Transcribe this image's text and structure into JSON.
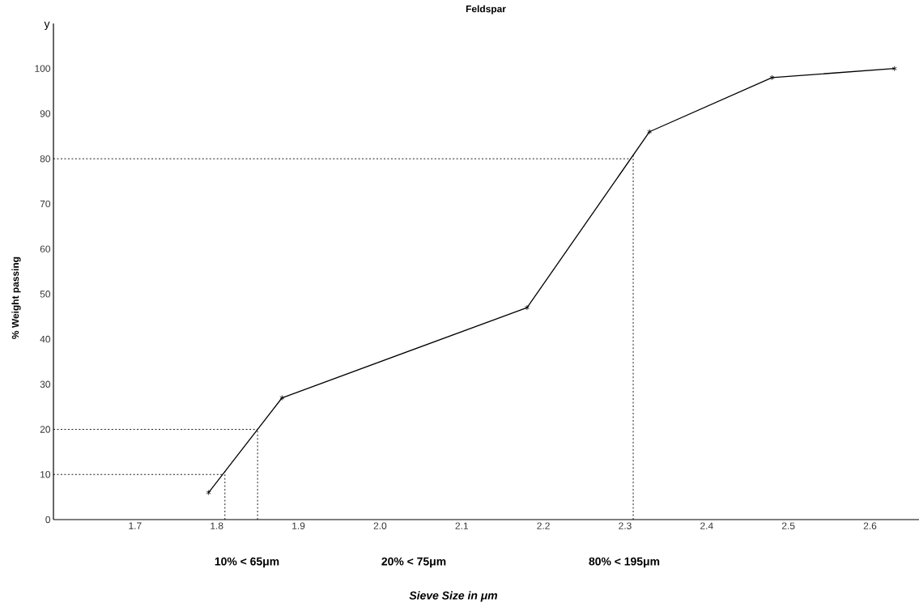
{
  "chart_data": {
    "type": "line",
    "title": "Feldspar",
    "ylabel": "% Weight passing",
    "annotations": [
      "y",
      "10%  <  65μm",
      "20%  <  75μm",
      "80%  <  195μm",
      "Sieve Size in μm"
    ],
    "x": [
      1.79,
      1.88,
      2.18,
      2.33,
      2.48,
      2.63
    ],
    "series": [
      {
        "color": "#000000",
        "values": [
          6,
          27,
          47,
          86,
          98,
          100
        ]
      }
    ],
    "xlim": [
      1.6,
      2.66
    ],
    "ylim": [
      0,
      110
    ],
    "xticks": [
      1.7,
      1.8,
      1.9,
      {
        "value": 2.0,
        "label": "2.0"
      },
      2.1,
      2.2,
      2.3,
      2.4,
      2.5,
      2.6
    ],
    "yticks": [
      0,
      10,
      20,
      30,
      40,
      50,
      60,
      70,
      80,
      90,
      100
    ],
    "ref_lines": [
      {
        "axis": "y",
        "value": 10,
        "line_style": "dotted"
      },
      {
        "axis": "y",
        "value": 20,
        "line_style": "dotted"
      },
      {
        "axis": "y",
        "value": 80,
        "line_style": "dotted"
      },
      {
        "axis": "x",
        "value": 1.81,
        "line_style": "dotted"
      },
      {
        "axis": "x",
        "value": 1.85,
        "line_style": "dotted"
      },
      {
        "axis": "x",
        "value": 2.31,
        "line_style": "dotted"
      }
    ],
    "grid": false,
    "legend": false,
    "marker": "cross",
    "line_style": "solid"
  }
}
